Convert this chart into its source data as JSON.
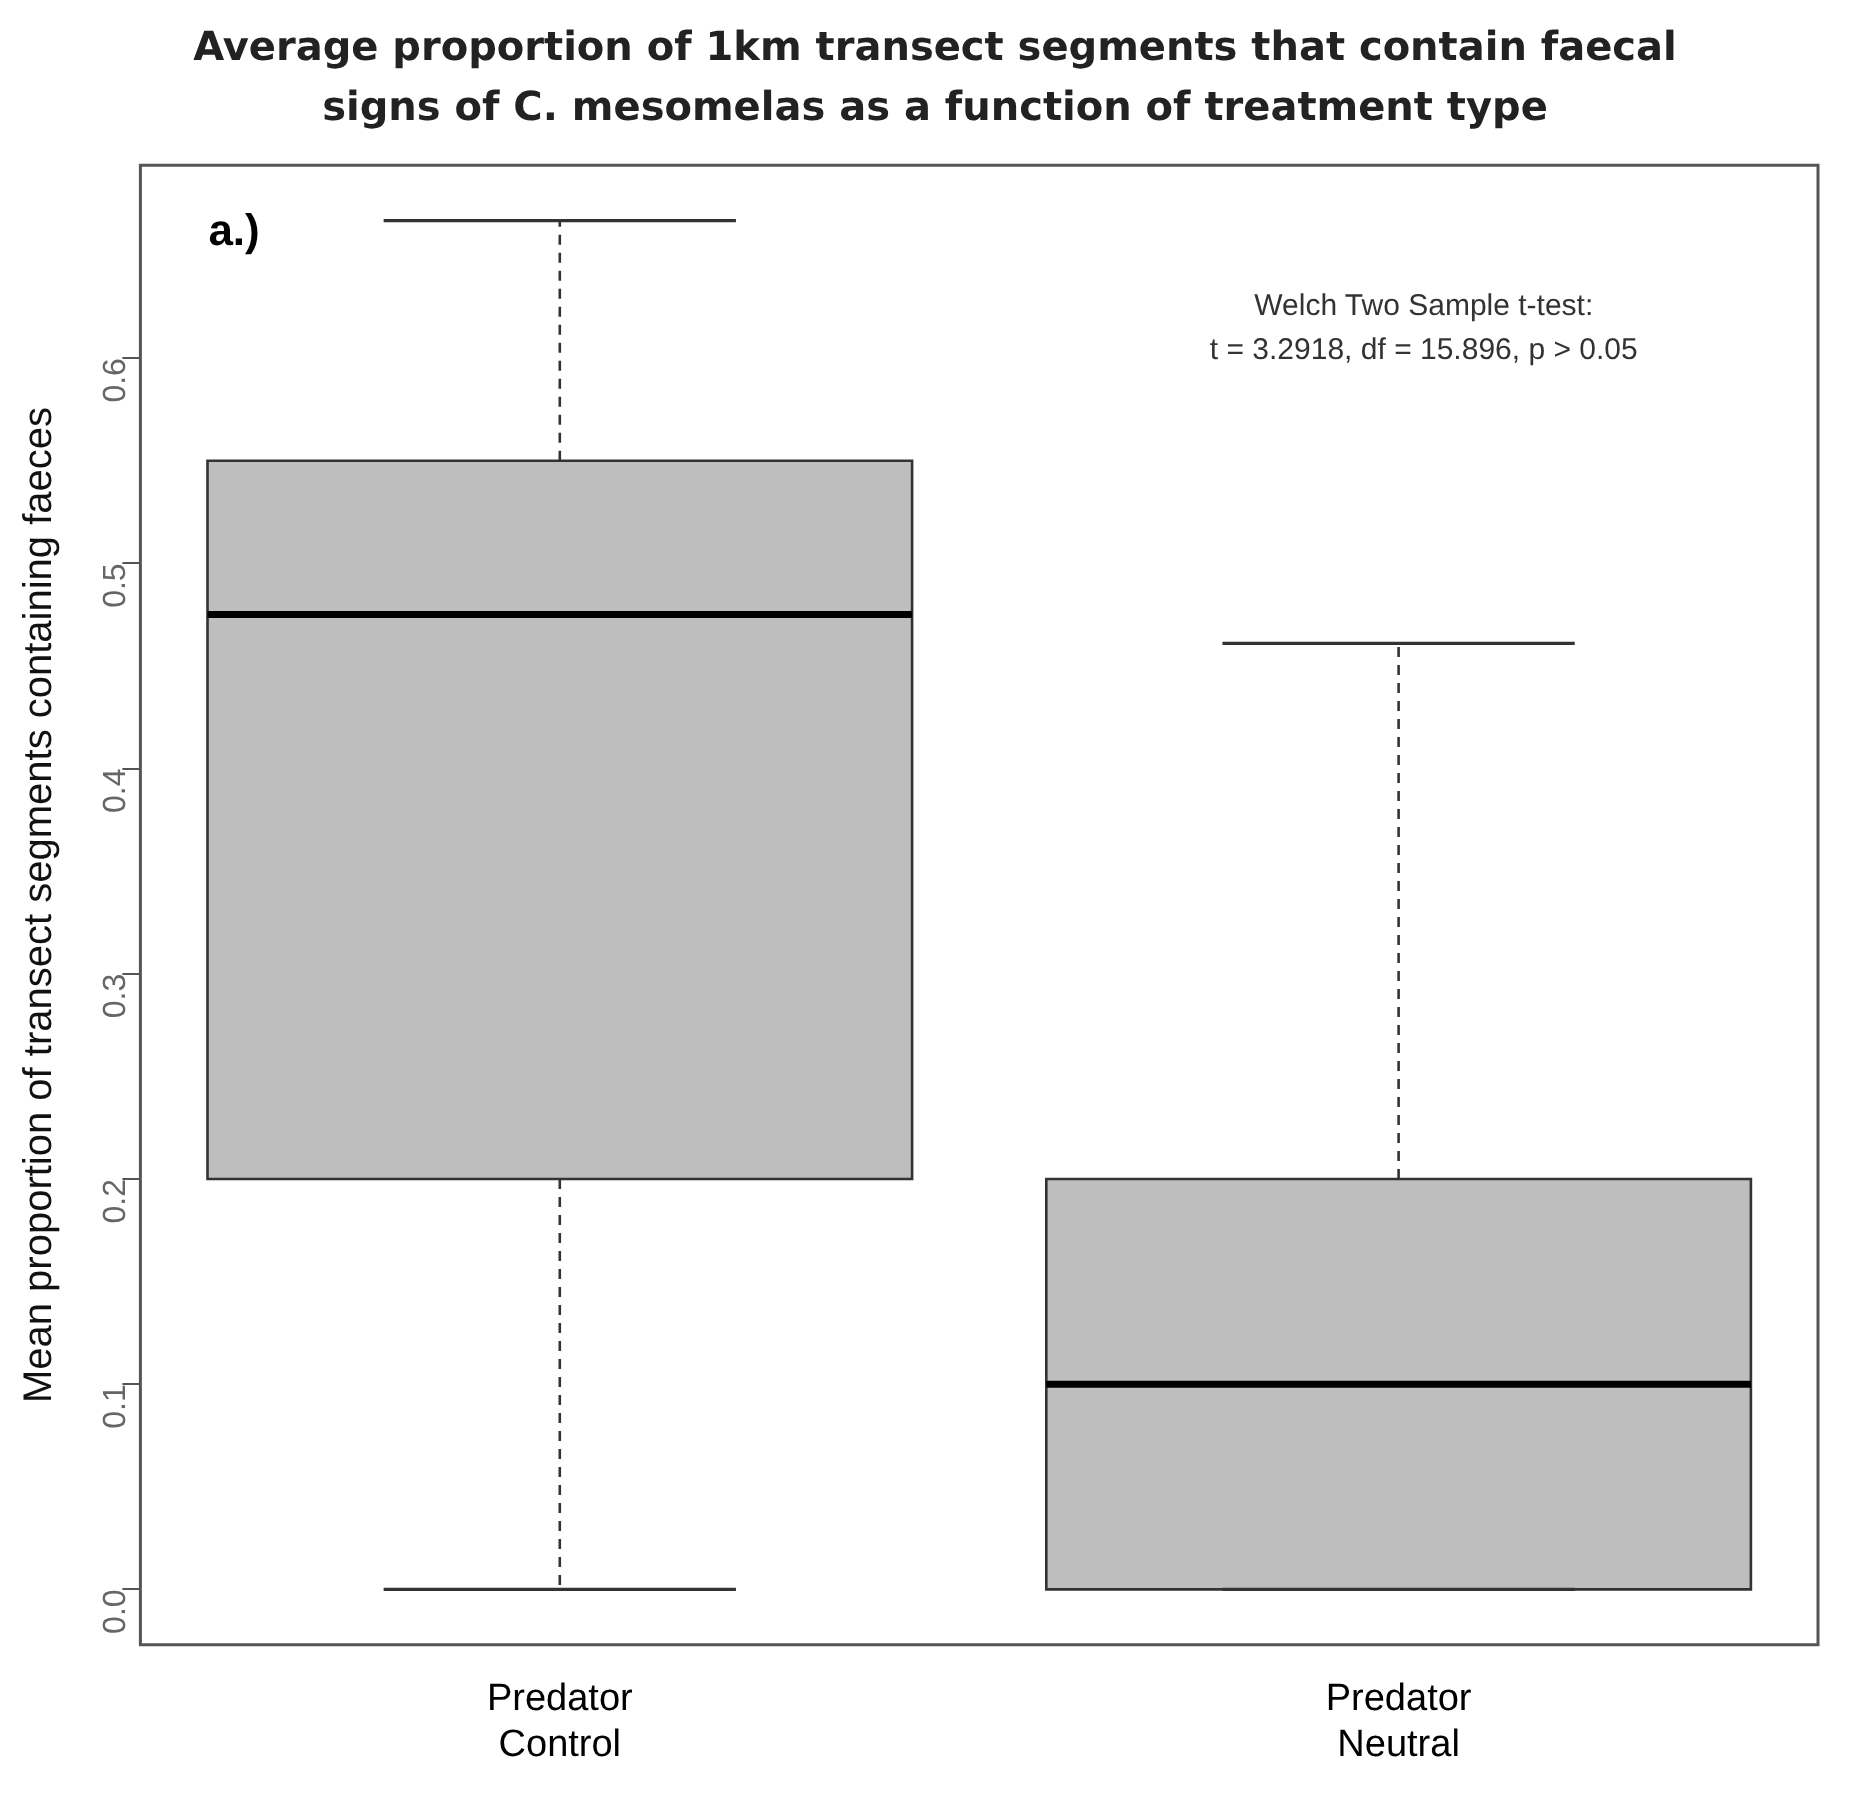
{
  "chart_data": {
    "type": "box",
    "title": "Average proportion of 1km transect segments that contain faecal signs of C. mesomelas as a function of treatment type",
    "ylabel": "Mean proportion of transect segments containing faeces",
    "categories": [
      "Predator Control",
      "Predator Neutral"
    ],
    "series": [
      {
        "color": "#bebebe",
        "boxes": [
          {
            "low": 0,
            "q1": 0.2,
            "median": 0.475,
            "q3": 0.55,
            "high": 0.667
          },
          {
            "low": 0,
            "q1": 0,
            "median": 0.1,
            "q3": 0.2,
            "high": 0.461
          }
        ]
      }
    ],
    "ylim": [
      -0.027,
      0.694
    ],
    "yticks": [
      {
        "value": 0,
        "label": "0.0"
      },
      {
        "value": 0.1,
        "label": "0.1"
      },
      {
        "value": 0.2,
        "label": "0.2"
      },
      {
        "value": 0.3,
        "label": "0.3"
      },
      {
        "value": 0.4,
        "label": "0.4"
      },
      {
        "value": 0.5,
        "label": "0.5"
      },
      {
        "value": 0.6,
        "label": "0.6"
      }
    ],
    "grid": false,
    "legend": false,
    "annotations": [
      "a.)",
      "Welch Two Sample t-test:",
      "t = 3.2918, df = 15.896, p > 0.05"
    ]
  }
}
